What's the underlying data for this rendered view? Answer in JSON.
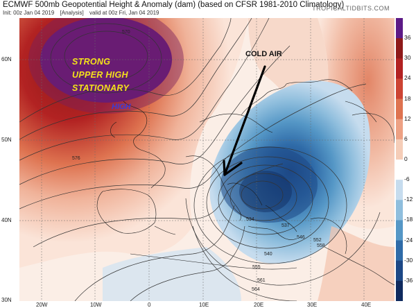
{
  "header": {
    "title": "ECMWF 500mb Geopotential Height & Anomaly (dam) (based on CFSR 1981-2010 Climatology)",
    "init": "Init: 00z Jan 04 2019",
    "analysis": "[Analysis]",
    "valid": "valid at 00z Fri, Jan 04 2019",
    "credit": "TROPICALTIDBITS.COM"
  },
  "axes": {
    "lat_labels": [
      "60N",
      "50N",
      "40N",
      "30N"
    ],
    "lon_labels": [
      "20W",
      "10W",
      "0",
      "10E",
      "20E",
      "30E",
      "40E"
    ]
  },
  "colorbar": {
    "ticks": [
      "36",
      "30",
      "24",
      "18",
      "12",
      "6",
      "0",
      "-6",
      "-12",
      "-18",
      "-24",
      "-30",
      "-36"
    ],
    "colors": [
      "#5c1a86",
      "#8e1a1a",
      "#b22222",
      "#cc4433",
      "#de7350",
      "#eda184",
      "#f5cdb8",
      "#ffffff",
      "#c6dcee",
      "#8fbedd",
      "#5597c6",
      "#2f6ba8",
      "#1d4886",
      "#0f2a5e"
    ]
  },
  "contours": {
    "labels": [
      "570",
      "576",
      "534",
      "537",
      "540",
      "546",
      "552",
      "555",
      "558",
      "561",
      "564"
    ]
  },
  "annotations": {
    "strong": "STRONG",
    "upper_high": "UPPER HIGH",
    "stationary": "STATIONARY",
    "high": "HIGH",
    "cold_air": "COLD AIR"
  }
}
